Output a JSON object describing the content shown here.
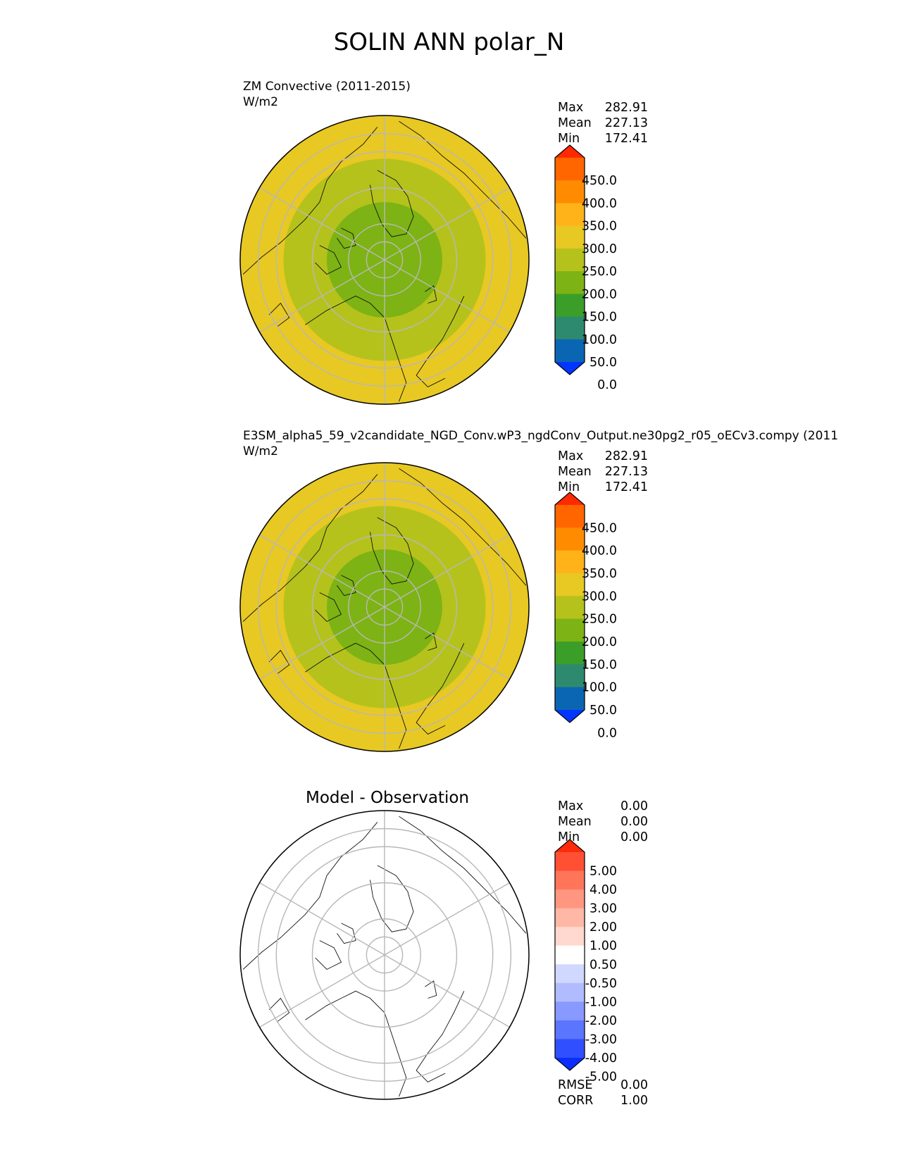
{
  "figure_title": "SOLIN ANN polar_N",
  "panels": [
    {
      "title": "ZM Convective (2011-2015)",
      "units": "W/m2",
      "stats": [
        {
          "label": "Max",
          "value": "282.91"
        },
        {
          "label": "Mean",
          "value": "227.13"
        },
        {
          "label": "Min",
          "value": "172.41"
        }
      ]
    },
    {
      "title": "E3SM_alpha5_59_v2candidate_NGD_Conv.wP3_ngdConv_Output.ne30pg2_r05_oECv3.compy (2011",
      "units": "W/m2",
      "stats": [
        {
          "label": "Max",
          "value": "282.91"
        },
        {
          "label": "Mean",
          "value": "227.13"
        },
        {
          "label": "Min",
          "value": "172.41"
        }
      ]
    },
    {
      "title": "Model - Observation",
      "stats": [
        {
          "label": "Max",
          "value": "0.00"
        },
        {
          "label": "Mean",
          "value": "0.00"
        },
        {
          "label": "Min",
          "value": "0.00"
        }
      ],
      "metrics": [
        {
          "label": "RMSE",
          "value": "0.00"
        },
        {
          "label": "CORR",
          "value": "1.00"
        }
      ]
    }
  ],
  "chart_data": [
    {
      "type": "heatmap",
      "projection": "north-polar-stereographic",
      "title": "ZM Convective (2011-2015)",
      "units": "W/m2",
      "field_bands": [
        {
          "from_lat": 90,
          "to_lat": 74,
          "value": 175
        },
        {
          "from_lat": 74,
          "to_lat": 62,
          "value": 225
        },
        {
          "from_lat": 62,
          "to_lat": 50,
          "value": 275
        }
      ],
      "colorbar": {
        "levels": [
          "450.0",
          "400.0",
          "350.0",
          "300.0",
          "250.0",
          "200.0",
          "150.0",
          "100.0",
          "50.0",
          "0.0"
        ],
        "colors": [
          "#ff2a00",
          "#ff6600",
          "#ff8c00",
          "#ffb319",
          "#e8c823",
          "#b5c21c",
          "#7db314",
          "#3b9e28",
          "#2e8a6e",
          "#0a66b3",
          "#0036ff"
        ],
        "extend": "both"
      }
    },
    {
      "type": "heatmap",
      "projection": "north-polar-stereographic",
      "title": "E3SM_alpha5_59_v2candidate_NGD_Conv.wP3_ngdConv_Output.ne30pg2_r05_oECv3.compy (2011",
      "units": "W/m2",
      "field_bands": [
        {
          "from_lat": 90,
          "to_lat": 74,
          "value": 175
        },
        {
          "from_lat": 74,
          "to_lat": 62,
          "value": 225
        },
        {
          "from_lat": 62,
          "to_lat": 50,
          "value": 275
        }
      ],
      "colorbar": {
        "levels": [
          "450.0",
          "400.0",
          "350.0",
          "300.0",
          "250.0",
          "200.0",
          "150.0",
          "100.0",
          "50.0",
          "0.0"
        ],
        "colors": [
          "#ff2a00",
          "#ff6600",
          "#ff8c00",
          "#ffb319",
          "#e8c823",
          "#b5c21c",
          "#7db314",
          "#3b9e28",
          "#2e8a6e",
          "#0a66b3",
          "#0036ff"
        ],
        "extend": "both"
      }
    },
    {
      "type": "heatmap",
      "projection": "north-polar-stereographic",
      "title": "Model - Observation",
      "field_bands": [
        {
          "from_lat": 90,
          "to_lat": 50,
          "value": 0.0
        }
      ],
      "colorbar": {
        "levels": [
          "5.00",
          "4.00",
          "3.00",
          "2.00",
          "1.00",
          "0.50",
          "-0.50",
          "-1.00",
          "-2.00",
          "-3.00",
          "-4.00",
          "-5.00"
        ],
        "colors": [
          "#ff2a0a",
          "#ff5033",
          "#ff7559",
          "#ff9680",
          "#ffb8a6",
          "#ffd9d0",
          "#ffffff",
          "#d0d8ff",
          "#b0bcff",
          "#8899ff",
          "#5c75ff",
          "#3050ff",
          "#0a2eff"
        ],
        "extend": "both"
      }
    }
  ]
}
